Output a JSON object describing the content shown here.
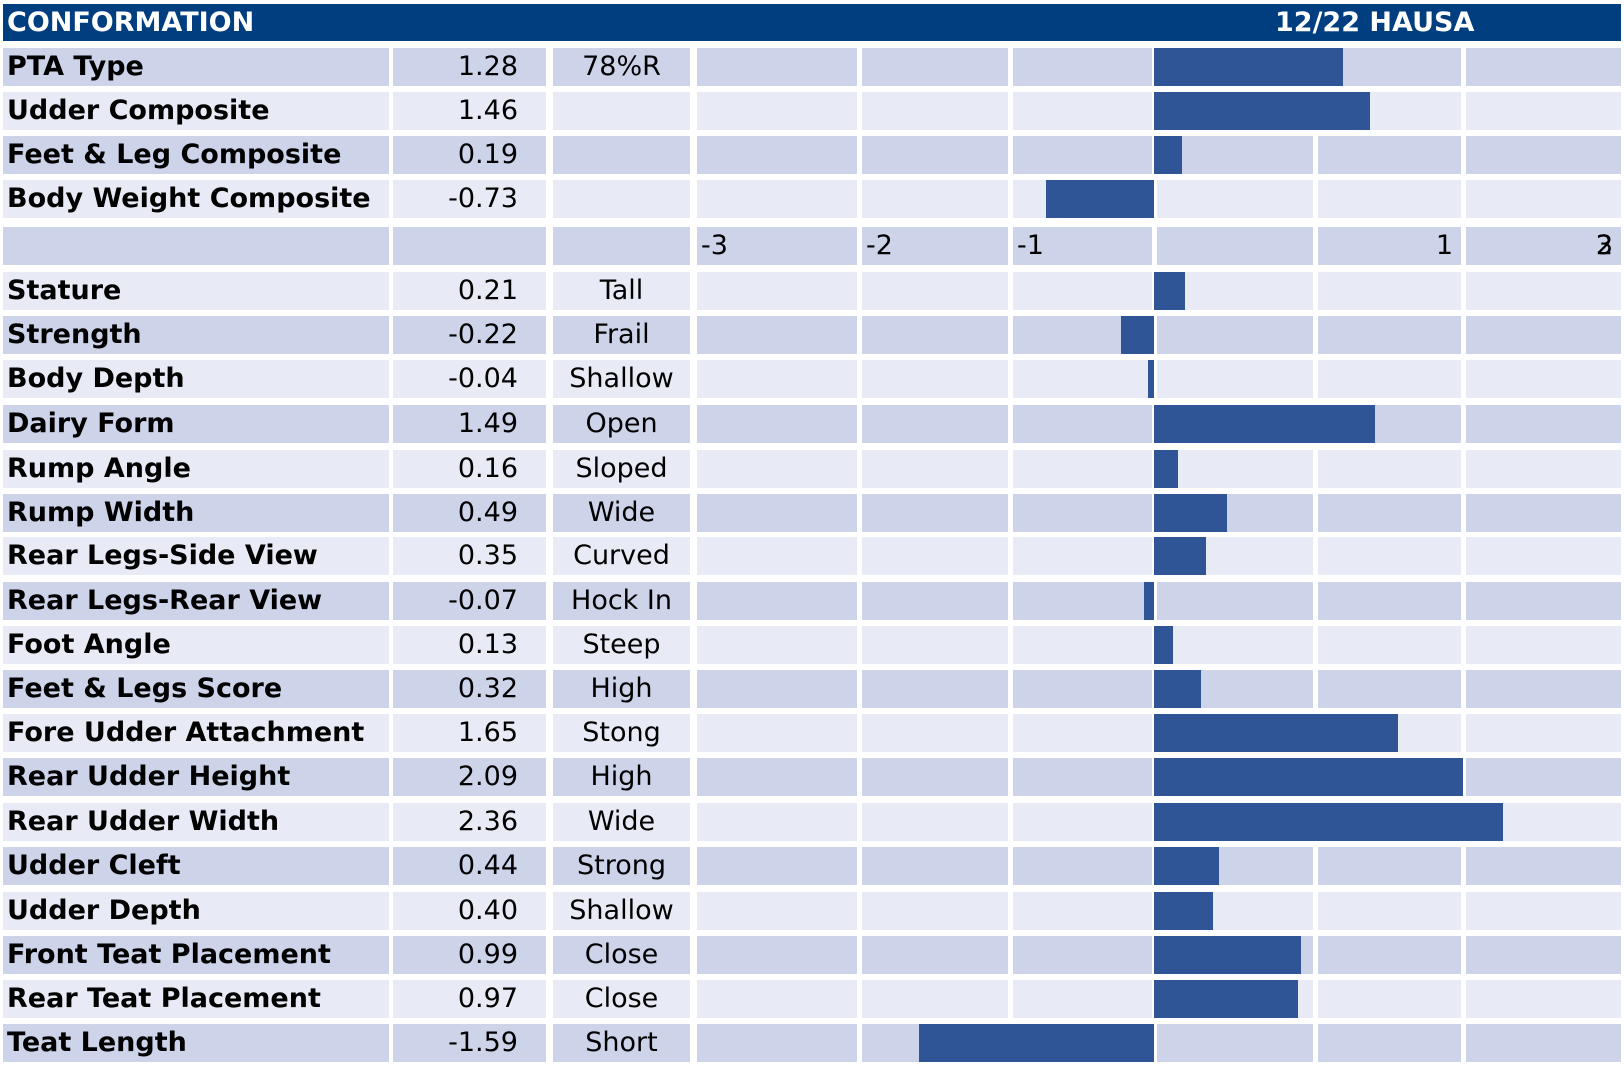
{
  "header": {
    "title": "CONFORMATION",
    "subtitle": "12/22 HAUSA"
  },
  "chart_data": {
    "type": "bar",
    "orientation": "horizontal",
    "xlim": [
      -3,
      3
    ],
    "ticks": [
      "-3",
      "-2",
      "-1",
      "",
      "1",
      "2",
      "3"
    ],
    "composites": [
      {
        "name": "PTA Type",
        "value": 1.28,
        "value_label": "1.28",
        "desc": "78%R"
      },
      {
        "name": "Udder Composite",
        "value": 1.46,
        "value_label": "1.46",
        "desc": ""
      },
      {
        "name": "Feet & Leg Composite",
        "value": 0.19,
        "value_label": "0.19",
        "desc": ""
      },
      {
        "name": "Body Weight Composite",
        "value": -0.73,
        "value_label": "-0.73",
        "desc": ""
      }
    ],
    "traits": [
      {
        "name": "Stature",
        "value": 0.21,
        "value_label": "0.21",
        "desc": "Tall"
      },
      {
        "name": "Strength",
        "value": -0.22,
        "value_label": "-0.22",
        "desc": "Frail"
      },
      {
        "name": "Body Depth",
        "value": -0.04,
        "value_label": "-0.04",
        "desc": "Shallow"
      },
      {
        "name": "Dairy Form",
        "value": 1.49,
        "value_label": "1.49",
        "desc": "Open"
      },
      {
        "name": "Rump Angle",
        "value": 0.16,
        "value_label": "0.16",
        "desc": "Sloped"
      },
      {
        "name": "Rump Width",
        "value": 0.49,
        "value_label": "0.49",
        "desc": "Wide"
      },
      {
        "name": "Rear Legs-Side View",
        "value": 0.35,
        "value_label": "0.35",
        "desc": "Curved"
      },
      {
        "name": "Rear Legs-Rear View",
        "value": -0.07,
        "value_label": "-0.07",
        "desc": "Hock In"
      },
      {
        "name": "Foot Angle",
        "value": 0.13,
        "value_label": "0.13",
        "desc": "Steep"
      },
      {
        "name": "Feet & Legs Score",
        "value": 0.32,
        "value_label": "0.32",
        "desc": "High"
      },
      {
        "name": "Fore Udder Attachment",
        "value": 1.65,
        "value_label": "1.65",
        "desc": "Stong"
      },
      {
        "name": "Rear Udder Height",
        "value": 2.09,
        "value_label": "2.09",
        "desc": "High"
      },
      {
        "name": "Rear Udder Width",
        "value": 2.36,
        "value_label": "2.36",
        "desc": "Wide"
      },
      {
        "name": "Udder Cleft",
        "value": 0.44,
        "value_label": "0.44",
        "desc": "Strong"
      },
      {
        "name": "Udder Depth",
        "value": 0.4,
        "value_label": "0.40",
        "desc": "Shallow"
      },
      {
        "name": "Front Teat Placement",
        "value": 0.99,
        "value_label": "0.99",
        "desc": "Close"
      },
      {
        "name": "Rear Teat Placement",
        "value": 0.97,
        "value_label": "0.97",
        "desc": "Close"
      },
      {
        "name": "Teat Length",
        "value": -1.59,
        "value_label": "-1.59",
        "desc": "Short"
      }
    ]
  },
  "colors": {
    "header_bg": "#003e80",
    "bar": "#2f5597",
    "row_dark": "#cdd4ea",
    "row_light": "#e8ebf6"
  }
}
